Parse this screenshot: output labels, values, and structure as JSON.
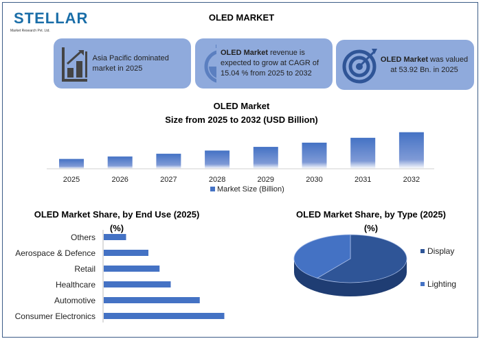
{
  "logo": {
    "name": "STELLAR",
    "tagline": "Market Research Pvt. Ltd."
  },
  "title": "OLED MARKET",
  "cards": [
    {
      "icon": "bar-chart-growth-icon",
      "text": "Asia Pacific dominated market in 2025"
    },
    {
      "icon": "stopwatch-icon",
      "bold": "OLED Market",
      "text": " revenue is expected to grow at CAGR of 15.04 % from 2025 to 2032"
    },
    {
      "icon": "target-icon",
      "bold": "OLED Market",
      "text": " was valued at 53.92 Bn. in 2025"
    }
  ],
  "chart_data": [
    {
      "type": "bar",
      "title_line1": "OLED Market",
      "title_line2": "Size from 2025 to 2032 (USD Billion)",
      "categories": [
        "2025",
        "2026",
        "2027",
        "2028",
        "2029",
        "2030",
        "2031",
        "2032"
      ],
      "series": [
        {
          "name": "Market Size (Billion)",
          "values": [
            53.92,
            62.03,
            71.36,
            82.09,
            94.44,
            108.65,
            124.99,
            143.79
          ]
        }
      ],
      "color": "#4472c4",
      "legend": "bottom",
      "grid": false
    },
    {
      "type": "bar",
      "orientation": "horizontal",
      "title_line1": "OLED Market Share, by End Use (2025)",
      "title_line2": "(%)",
      "categories": [
        "Others",
        "Aerospace & Defence",
        "Retail",
        "Healthcare",
        "Automotive",
        "Consumer Electronics"
      ],
      "values": [
        5,
        10,
        12.5,
        15,
        21.5,
        27
      ],
      "color": "#4472c4",
      "grid": false
    },
    {
      "type": "pie",
      "style": "3d",
      "title_line1": "OLED Market Share, by Type (2025)",
      "title_line2": "(%)",
      "slices": [
        {
          "label": "Display",
          "value": 60,
          "color": "#2f5597"
        },
        {
          "label": "Lighting",
          "value": 40,
          "color": "#4472c4"
        }
      ],
      "legend": "right"
    }
  ]
}
